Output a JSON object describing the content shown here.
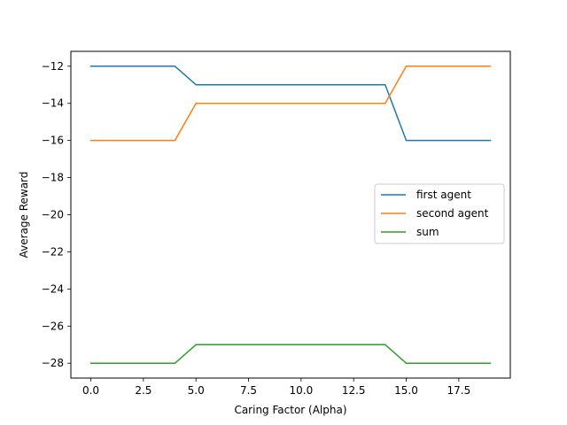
{
  "chart_data": {
    "type": "line",
    "title": "",
    "xlabel": "Caring Factor (Alpha)",
    "ylabel": "Average Reward",
    "xlim": [
      -0.95,
      19.95
    ],
    "ylim": [
      -28.8,
      -11.2
    ],
    "xticks": [
      "0.0",
      "2.5",
      "5.0",
      "7.5",
      "10.0",
      "12.5",
      "15.0",
      "17.5"
    ],
    "xtick_values": [
      0,
      2.5,
      5,
      7.5,
      10,
      12.5,
      15,
      17.5
    ],
    "yticks": [
      "−12",
      "−14",
      "−16",
      "−18",
      "−20",
      "−22",
      "−24",
      "−26",
      "−28"
    ],
    "ytick_values": [
      -12,
      -14,
      -16,
      -18,
      -20,
      -22,
      -24,
      -26,
      -28
    ],
    "grid": false,
    "legend_position": "center-right",
    "x": [
      0,
      1,
      2,
      3,
      4,
      5,
      6,
      7,
      8,
      9,
      10,
      11,
      12,
      13,
      14,
      15,
      16,
      17,
      18,
      19
    ],
    "series": [
      {
        "name": "first agent",
        "color": "#1f77b4",
        "values": [
          -12,
          -12,
          -12,
          -12,
          -12,
          -13,
          -13,
          -13,
          -13,
          -13,
          -13,
          -13,
          -13,
          -13,
          -13,
          -16,
          -16,
          -16,
          -16,
          -16
        ]
      },
      {
        "name": "second agent",
        "color": "#ff7f0e",
        "values": [
          -16,
          -16,
          -16,
          -16,
          -16,
          -14,
          -14,
          -14,
          -14,
          -14,
          -14,
          -14,
          -14,
          -14,
          -14,
          -12,
          -12,
          -12,
          -12,
          -12
        ]
      },
      {
        "name": "sum",
        "color": "#2ca02c",
        "values": [
          -28,
          -28,
          -28,
          -28,
          -28,
          -27,
          -27,
          -27,
          -27,
          -27,
          -27,
          -27,
          -27,
          -27,
          -27,
          -28,
          -28,
          -28,
          -28,
          -28
        ]
      }
    ]
  }
}
